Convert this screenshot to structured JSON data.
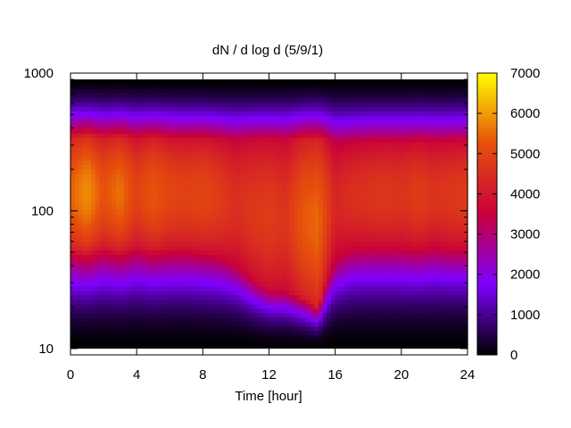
{
  "chart_data": {
    "type": "heatmap",
    "title": "dN / d log d (5/9/1)",
    "xlabel": "Time [hour]",
    "ylabel": "",
    "x_range": [
      0,
      24
    ],
    "x_ticks": [
      "0",
      "4",
      "8",
      "12",
      "16",
      "20",
      "24"
    ],
    "y_scale": "log",
    "y_range": [
      9,
      1000
    ],
    "y_ticks": [
      "10",
      "100",
      "1000"
    ],
    "data_y_range": [
      10,
      900
    ],
    "colorbar": {
      "range": [
        0,
        7000
      ],
      "ticks": [
        "0",
        "1000",
        "2000",
        "3000",
        "4000",
        "5000",
        "6000",
        "7000"
      ],
      "palette": "black-purple-red-orange-yellow",
      "colors": [
        "#000000",
        "#7f00ff",
        "#c8003a",
        "#e6500b",
        "#ffff00"
      ]
    },
    "times": [
      0,
      1,
      2,
      3,
      4,
      5,
      6,
      7,
      8,
      9,
      10,
      11,
      12,
      13,
      14,
      15,
      16,
      17,
      18,
      19,
      20,
      21,
      22,
      23,
      24
    ],
    "peak_density": [
      5400,
      5900,
      5200,
      5600,
      4900,
      5300,
      5000,
      4900,
      5000,
      4800,
      4500,
      4700,
      4800,
      4600,
      5300,
      5500,
      4300,
      4500,
      4600,
      4700,
      4600,
      4800,
      4600,
      4700,
      4800
    ],
    "lower_edge_diameter": [
      55,
      55,
      56,
      55,
      55,
      54,
      54,
      53,
      52,
      48,
      40,
      32,
      27,
      26,
      24,
      20,
      42,
      52,
      54,
      55,
      54,
      54,
      55,
      54,
      55
    ],
    "upper_edge_diameter": [
      340,
      340,
      340,
      340,
      340,
      340,
      335,
      335,
      335,
      330,
      330,
      330,
      330,
      330,
      330,
      330,
      320,
      320,
      320,
      320,
      320,
      320,
      320,
      320,
      320
    ]
  }
}
